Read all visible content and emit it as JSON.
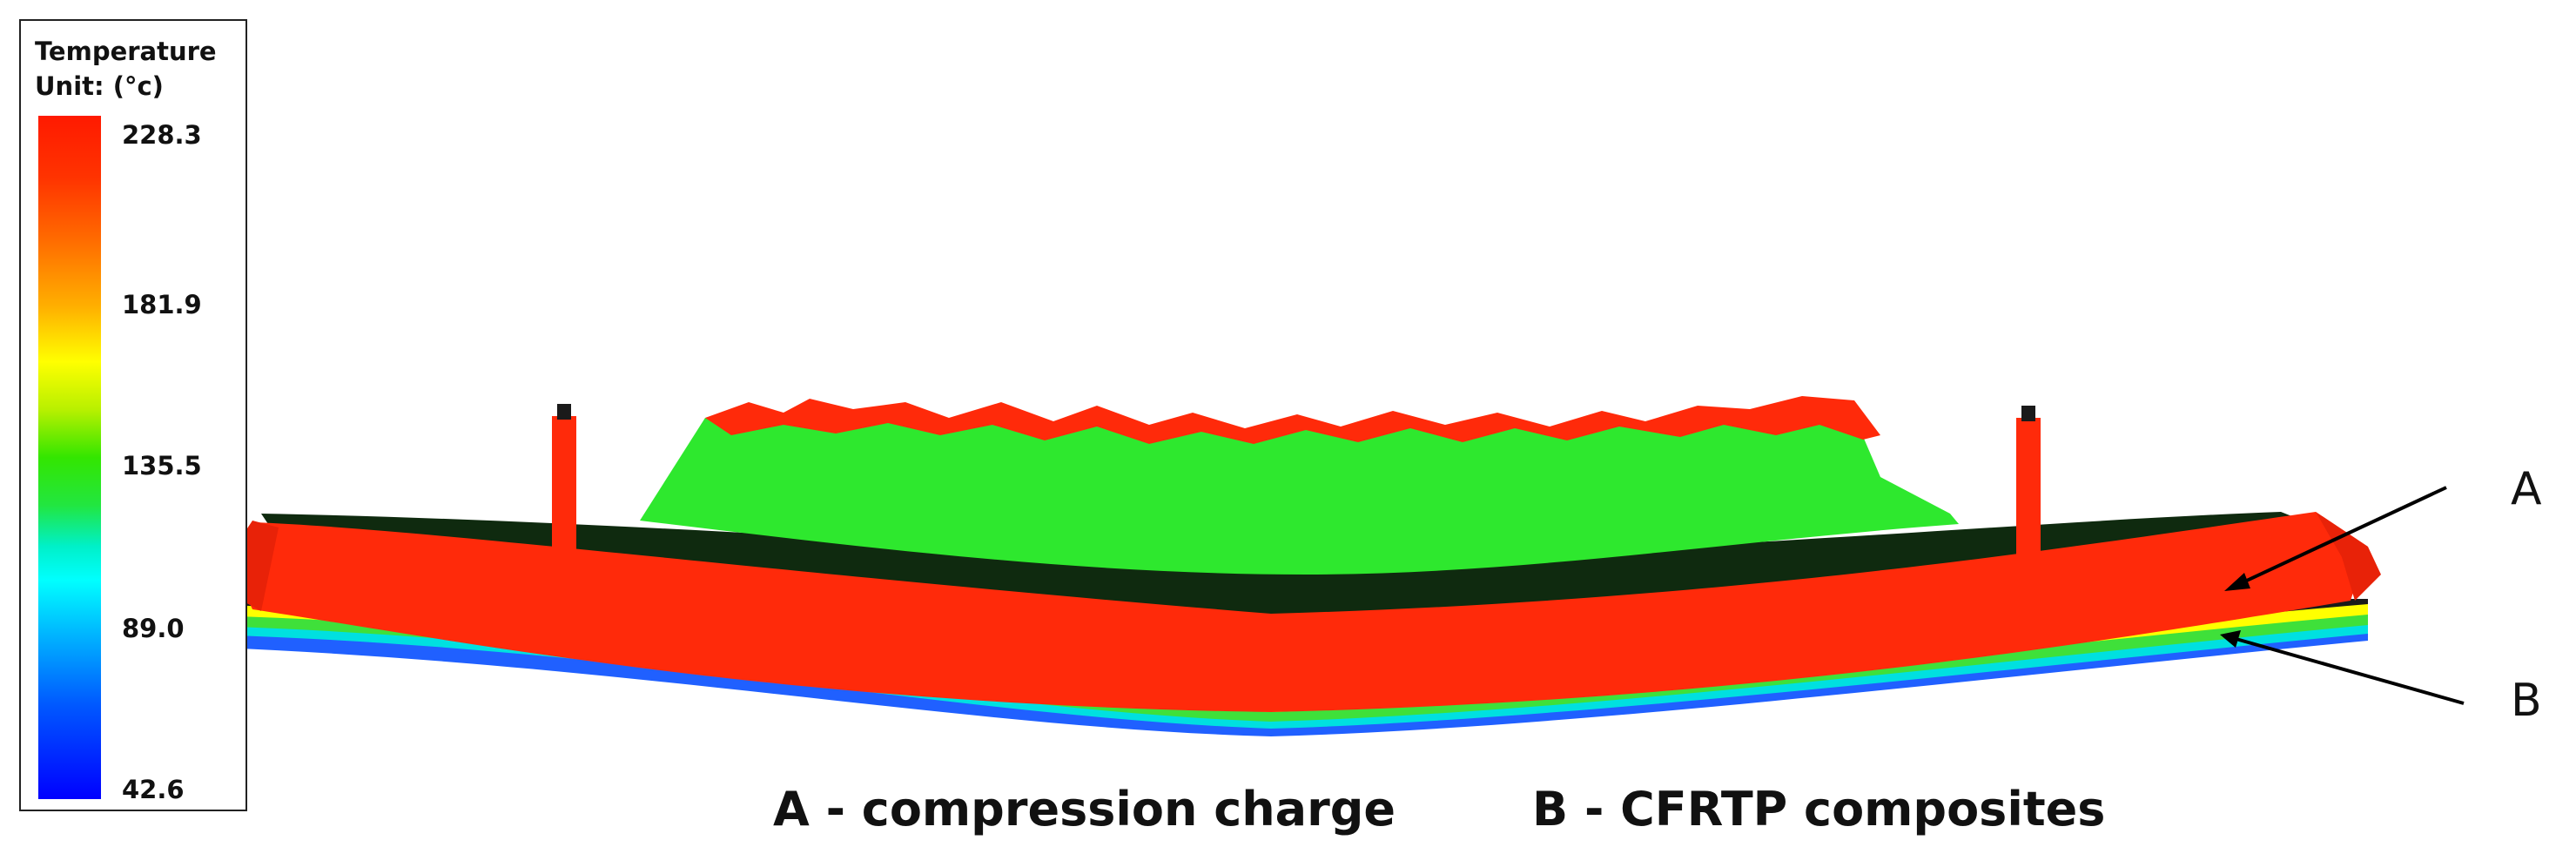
{
  "legend": {
    "title": "Temperature",
    "unit": "Unit: (°c)",
    "ticks": [
      "228.3",
      "181.9",
      "135.5",
      "89.0",
      "42.6"
    ]
  },
  "labels": {
    "a": "A",
    "b": "B"
  },
  "captions": {
    "a": "A - compression charge",
    "b": "B - CFRTP composites"
  },
  "colors": {
    "hot": "#ff2a0a",
    "charge_top": "#2ee82e",
    "dark_layer": "#0f2a0f",
    "composite_bands": [
      "#ffff00",
      "#3fe03a",
      "#00e0e0"
    ]
  }
}
